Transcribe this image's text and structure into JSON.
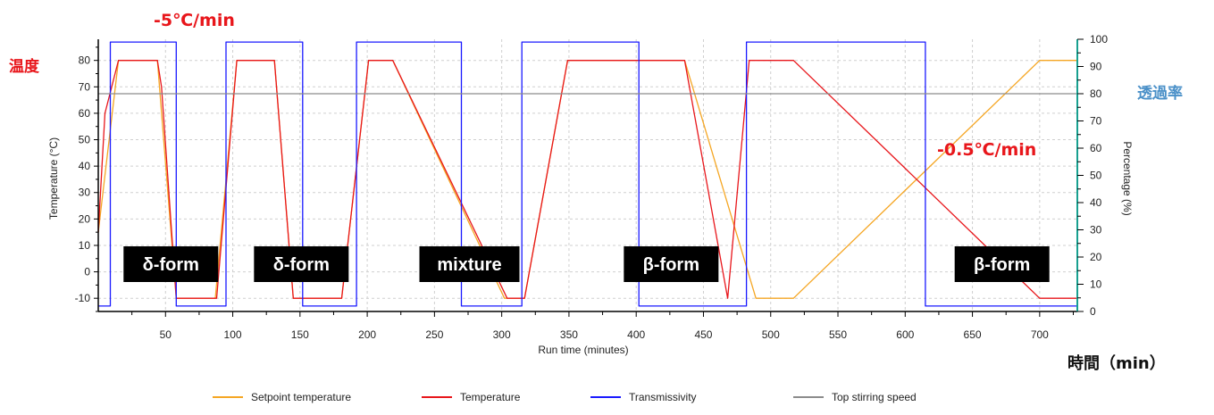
{
  "annotations": {
    "rate_fast": "-5℃/min",
    "rate_slow": "-0.5℃/min",
    "temp_label_jp": "温度",
    "trans_label_jp": "透過率",
    "time_label_jp": "時間（min）"
  },
  "chart_data": {
    "type": "line",
    "xlabel": "Run time (minutes)",
    "ylabel": "Temperature (°C)",
    "y2label": "Percentage (%)",
    "xlim": [
      0,
      728
    ],
    "ylim": [
      -15,
      88
    ],
    "y2lim": [
      0,
      100
    ],
    "xticks": [
      50,
      100,
      150,
      200,
      250,
      300,
      350,
      400,
      450,
      500,
      550,
      600,
      650,
      700
    ],
    "yticks": [
      -10,
      0,
      10,
      20,
      30,
      40,
      50,
      60,
      70,
      80
    ],
    "y2ticks": [
      0,
      10,
      20,
      30,
      40,
      50,
      60,
      70,
      80,
      90,
      100
    ],
    "grid": true,
    "legend_position": "bottom",
    "series": [
      {
        "name": "Setpoint temperature",
        "color": "#f5a623",
        "axis": "left",
        "x": [
          0,
          15,
          44,
          58,
          87,
          103,
          131,
          145,
          181,
          201,
          219,
          302,
          317,
          349,
          436,
          489,
          517,
          700,
          728
        ],
        "y": [
          15,
          80,
          80,
          -10,
          -10,
          80,
          80,
          -10,
          -10,
          80,
          80,
          -10,
          -10,
          80,
          80,
          -10,
          -10,
          80,
          80
        ]
      },
      {
        "name": "Temperature",
        "color": "#e8161b",
        "axis": "left",
        "x": [
          0,
          5,
          15,
          44,
          47,
          58,
          88,
          103,
          131,
          145,
          181,
          201,
          219,
          304,
          317,
          349,
          436,
          468,
          484,
          517,
          700,
          728
        ],
        "y": [
          15,
          60,
          80,
          80,
          70,
          -10,
          -10,
          80,
          80,
          -10,
          -10,
          80,
          80,
          -10,
          -10,
          80,
          80,
          -10,
          80,
          80,
          -10,
          -10
        ]
      },
      {
        "name": "Transmissivity",
        "color": "#1a1aff",
        "axis": "right",
        "x": [
          0,
          9,
          9,
          58,
          58,
          95,
          95,
          152,
          152,
          192,
          192,
          270,
          270,
          315,
          315,
          402,
          402,
          482,
          482,
          615,
          615,
          728
        ],
        "y": [
          2,
          2,
          99,
          99,
          2,
          2,
          99,
          99,
          2,
          2,
          99,
          99,
          2,
          2,
          99,
          99,
          2,
          2,
          99,
          99,
          2,
          2
        ]
      },
      {
        "name": "Top stirring speed",
        "color": "#8c8c8c",
        "axis": "right",
        "x": [
          0,
          728
        ],
        "y": [
          80,
          80
        ]
      }
    ],
    "labels": [
      {
        "text": "δ-form",
        "x": 54
      },
      {
        "text": "δ-form",
        "x": 151
      },
      {
        "text": "mixture",
        "x": 276
      },
      {
        "text": "β-form",
        "x": 426
      },
      {
        "text": "β-form",
        "x": 672
      }
    ]
  }
}
